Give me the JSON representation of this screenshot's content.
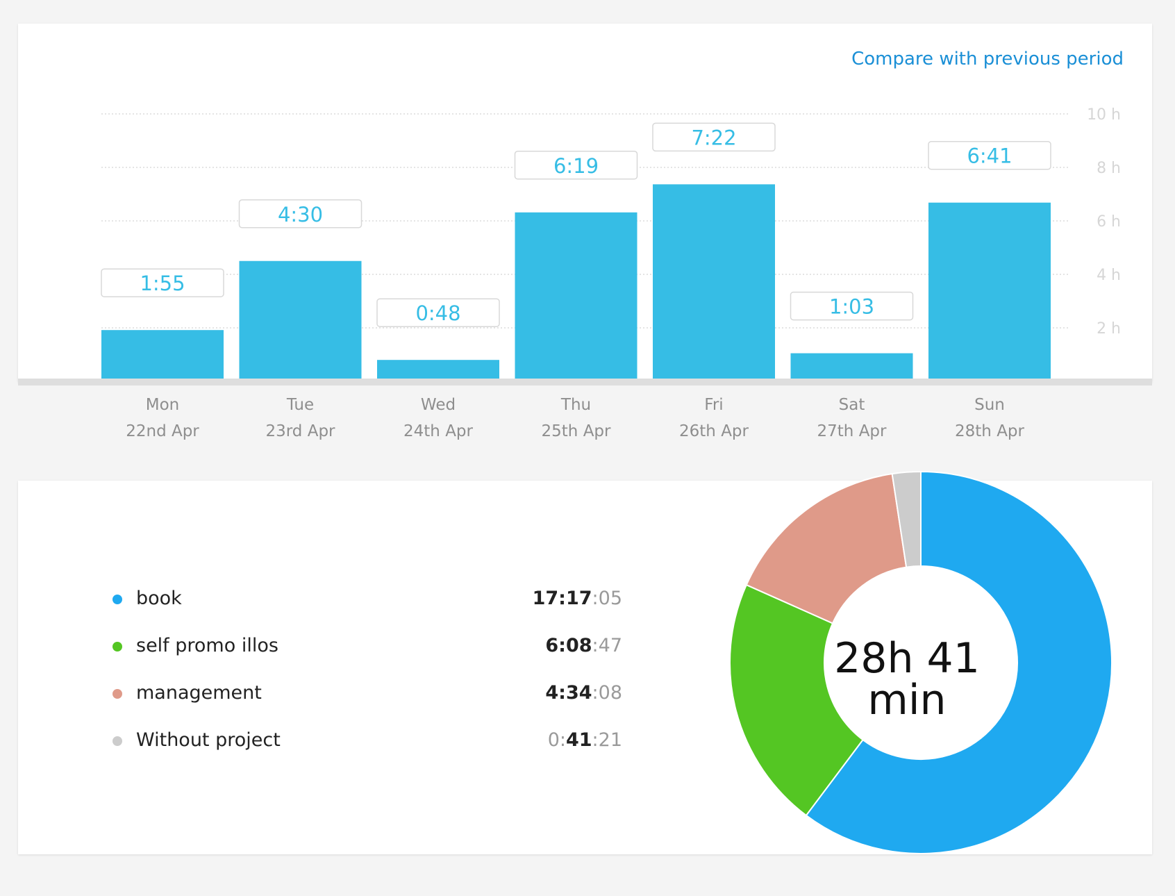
{
  "compare_link": "Compare with previous period",
  "chart_data": [
    {
      "type": "bar",
      "categories": [
        "Mon",
        "Tue",
        "Wed",
        "Thu",
        "Fri",
        "Sat",
        "Sun"
      ],
      "dates": [
        "22nd Apr",
        "23rd Apr",
        "24th Apr",
        "25th Apr",
        "26th Apr",
        "27th Apr",
        "28th Apr"
      ],
      "values": [
        1.917,
        4.5,
        0.8,
        6.317,
        7.367,
        1.05,
        6.683
      ],
      "value_labels": [
        "1:55",
        "4:30",
        "0:48",
        "6:19",
        "7:22",
        "1:03",
        "6:41"
      ],
      "yticks": [
        2,
        4,
        6,
        8,
        10
      ],
      "ytick_labels": [
        "2 h",
        "4 h",
        "6 h",
        "8 h",
        "10 h"
      ],
      "ylim": [
        0,
        10
      ],
      "grid": true,
      "color": "#36bde5"
    },
    {
      "type": "pie",
      "donut": true,
      "center_label": [
        "28h 41",
        "min"
      ],
      "series": [
        {
          "name": "book",
          "value": 17.285,
          "color": "#1fa9f0",
          "time": {
            "pre": "",
            "bold": "17:17",
            "post": ":05"
          }
        },
        {
          "name": "self promo illos",
          "value": 6.146,
          "color": "#54c623",
          "time": {
            "pre": "",
            "bold": "6:08",
            "post": ":47"
          }
        },
        {
          "name": "management",
          "value": 4.569,
          "color": "#df9a89",
          "time": {
            "pre": "",
            "bold": "4:34",
            "post": ":08"
          }
        },
        {
          "name": "Without project",
          "value": 0.689,
          "color": "#cccccc",
          "time": {
            "pre": "0:",
            "bold": "41",
            "post": ":21"
          }
        }
      ]
    }
  ]
}
